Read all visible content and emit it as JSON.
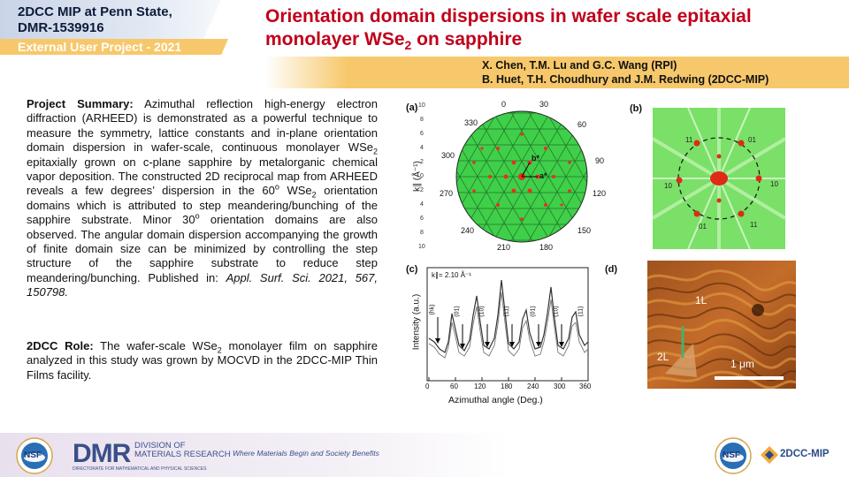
{
  "header": {
    "badge_line1": "2DCC MIP at Penn State,",
    "badge_line2": "DMR-1539916",
    "badge_line3": "External User Project - 2021",
    "title_part1": "Orientation domain dispersions in wafer scale epitaxial",
    "title_part2": "monolayer WSe",
    "title_sub": "2",
    "title_part3": " on sapphire",
    "authors_line1": "X. Chen, T.M. Lu and G.C. Wang (RPI)",
    "authors_line2": "B. Huet, T.H. Choudhury and J.M. Redwing (2DCC-MIP)"
  },
  "summary": {
    "heading": "Project Summary:",
    "t1": " Azimuthal reflection high-energy electron diffraction (ARHEED) is demonstrated as a powerful technique to measure the symmetry, lattice constants and in-plane orientation domain dispersion in wafer-scale, continuous monolayer WSe",
    "s1": "2",
    "t2": " epitaxially grown on c-plane sapphire by metalorganic chemical vapor deposition. The constructed 2D reciprocal map from ARHEED reveals a few degrees’ dispersion in the 60",
    "sup1": "o",
    "t3": " WSe",
    "s2": "2",
    "t4": " orientation domains which is attributed to step meandering/bunching of the sapphire substrate. Minor 30",
    "sup2": "o",
    "t5": " orientation domains are also observed. The angular domain dispersion accompanying the growth of finite domain size can be minimized by controlling the step structure of the sapphire substrate to reduce step meandering/bunching. Published in: ",
    "citation": "Appl. Surf. Sci. 2021, 567, 150798."
  },
  "role": {
    "heading": "2DCC Role:",
    "t1": " The wafer-scale WSe",
    "s1": "2",
    "t2": " monolayer film on sapphire analyzed in this study was grown by MOCVD in the 2DCC-MIP Thin Films facility."
  },
  "figure_a": {
    "label": "(a)",
    "ylabel": "k∥ (Å⁻¹)",
    "ticks_left": [
      "10",
      "8",
      "6",
      "4",
      "2",
      "0",
      "2",
      "4",
      "6",
      "8",
      "10"
    ],
    "angles": [
      "0",
      "30",
      "60",
      "90",
      "120",
      "150",
      "180",
      "210",
      "240",
      "270",
      "300",
      "330"
    ],
    "vec_b": "b*",
    "vec_a": "a*"
  },
  "figure_b": {
    "label": "(b)",
    "spot_labels": [
      "11",
      "01",
      "10",
      "10",
      "01",
      "11"
    ]
  },
  "figure_c": {
    "label": "(c)",
    "inset": "k∥= 2.10 Å⁻¹",
    "ylabel": "Intensity (a.u.)",
    "xlabel": "Azimuthal angle (Deg.)",
    "xticks": [
      "0",
      "60",
      "120",
      "180",
      "240",
      "300",
      "360"
    ],
    "peak_labels": [
      "(hk)",
      "(01)",
      "(10)",
      "(11)",
      "(01)",
      "(10)",
      "(11)"
    ]
  },
  "figure_d": {
    "label": "(d)",
    "label_1L": "1L",
    "label_2L": "2L",
    "scalebar": "1 μm"
  },
  "footer": {
    "nsf": "NSF",
    "dmr": "DMR",
    "dmr_line1": "DIVISION OF",
    "dmr_line2": "MATERIALS RESEARCH",
    "dmr_line3": "DIRECTORATE FOR MATHEMATICAL AND PHYSICAL SCIENCES",
    "tagline": "Where Materials Begin and Society Benefits",
    "cmip": "2DCC-MIP"
  },
  "colors": {
    "title": "#c0001a",
    "band": "#f7c86b",
    "navy": "#0d1b3a",
    "green_map": "#3fcf4a"
  }
}
